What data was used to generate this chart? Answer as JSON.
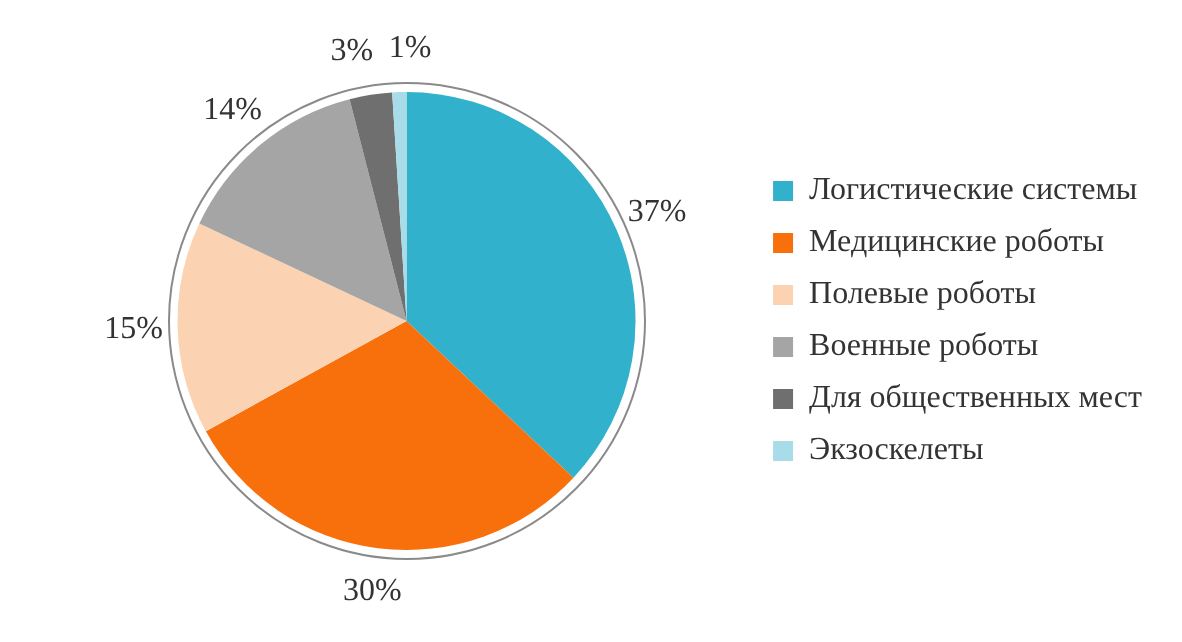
{
  "chart_data": {
    "type": "pie",
    "categories": [
      "Логистические системы",
      "Медицинские роботы",
      "Полевые роботы",
      "Военные роботы",
      "Для общественных мест",
      "Экзоскелеты"
    ],
    "values": [
      37,
      30,
      15,
      14,
      3,
      1
    ],
    "colors": [
      "#31b1cb",
      "#f7700b",
      "#fcd3b2",
      "#a5a5a5",
      "#6f6f6f",
      "#a8dce8"
    ],
    "value_labels": [
      "37%",
      "30%",
      "15%",
      "14%",
      "3%",
      "1%"
    ],
    "legend": "right"
  }
}
